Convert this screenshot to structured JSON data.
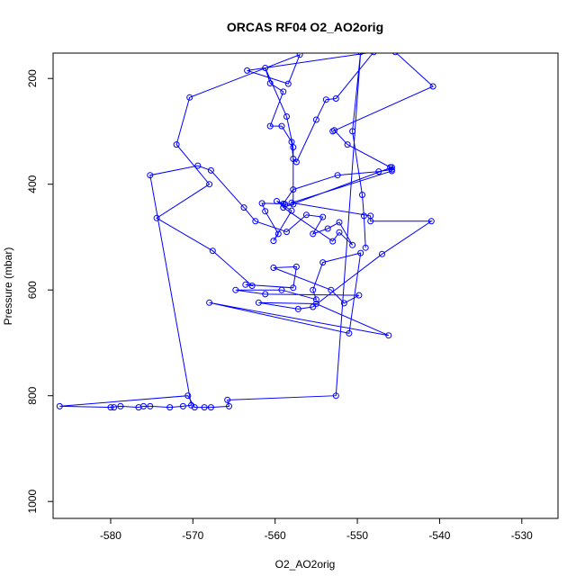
{
  "chart_data": {
    "type": "line",
    "title": "ORCAS RF04 O2_AO2orig",
    "xlabel": "O2_AO2orig",
    "ylabel": "Pressure (mbar)",
    "xlim": [
      -587.0,
      -525.6
    ],
    "ylim": [
      1032,
      152
    ],
    "y_reversed": true,
    "grid": false,
    "xticks": [
      -580,
      -570,
      -560,
      -550,
      -540,
      -530
    ],
    "xtick_labels": [
      "-580",
      "-570",
      "-560",
      "-550",
      "-540",
      "-530"
    ],
    "yticks": [
      200,
      400,
      600,
      800,
      1000
    ],
    "ytick_labels": [
      "200",
      "400",
      "600",
      "800",
      "1000"
    ],
    "color": "#0000ff",
    "series": [
      {
        "values": [
          [
            -545.4,
            150
          ],
          [
            -540.8,
            215
          ],
          [
            -553.0,
            300
          ],
          [
            -552.8,
            298
          ],
          [
            -551.2,
            325
          ],
          [
            -546.0,
            368
          ],
          [
            -545.8,
            375
          ],
          [
            -558.0,
            435
          ],
          [
            -548.4,
            460
          ],
          [
            -548.4,
            470
          ],
          [
            -541.0,
            470
          ],
          [
            -547.0,
            532
          ],
          [
            -555.4,
            632
          ],
          [
            -557.2,
            636
          ],
          [
            -562.0,
            624
          ],
          [
            -555.0,
            626
          ],
          [
            -546.2,
            686
          ],
          [
            -568.0,
            624
          ],
          [
            -551.0,
            682
          ],
          [
            -549.6,
            530
          ],
          [
            -554.2,
            548
          ],
          [
            -555.4,
            600
          ],
          [
            -555.0,
            618
          ],
          [
            -559.2,
            600
          ],
          [
            -564.8,
            600
          ],
          [
            -561.2,
            608
          ],
          [
            -549.8,
            610
          ],
          [
            -551.6,
            625
          ],
          [
            -553.2,
            600
          ],
          [
            -560.2,
            558
          ],
          [
            -557.4,
            556
          ],
          [
            -557.8,
            596
          ],
          [
            -563.6,
            590
          ],
          [
            -562.8,
            592
          ],
          [
            -567.6,
            526
          ],
          [
            -574.4,
            464
          ],
          [
            -568.0,
            400
          ],
          [
            -572.0,
            325
          ],
          [
            -570.4,
            236
          ],
          [
            -557.0,
            155
          ],
          [
            -558.4,
            210
          ],
          [
            -563.4,
            185
          ],
          [
            -548.0,
            150
          ],
          [
            -552.6,
            238
          ],
          [
            -553.8,
            240
          ],
          [
            -555.0,
            278
          ],
          [
            -557.4,
            358
          ],
          [
            -557.8,
            352
          ],
          [
            -558.0,
            320
          ],
          [
            -559.2,
            290
          ],
          [
            -560.6,
            290
          ],
          [
            -559.0,
            225
          ],
          [
            -560.6,
            209
          ],
          [
            -561.2,
            180
          ],
          [
            -558.6,
            272
          ],
          [
            -557.8,
            330
          ],
          [
            -557.8,
            438
          ],
          [
            -558.8,
            438
          ],
          [
            -559.8,
            432
          ],
          [
            -558.0,
            450
          ],
          [
            -560.2,
            507
          ],
          [
            -559.6,
            494
          ],
          [
            -561.2,
            451
          ],
          [
            -561.6,
            436
          ],
          [
            -559.0,
            437
          ],
          [
            -557.8,
            410
          ],
          [
            -552.4,
            383
          ],
          [
            -547.4,
            376
          ],
          [
            -545.8,
            372
          ],
          [
            -545.8,
            368
          ],
          [
            -559.0,
            444
          ],
          [
            -553.0,
            508
          ],
          [
            -552.2,
            491
          ],
          [
            -550.6,
            515
          ],
          [
            -552.2,
            472
          ],
          [
            -553.6,
            484
          ],
          [
            -555.4,
            494
          ],
          [
            -554.2,
            462
          ],
          [
            -556.2,
            458
          ],
          [
            -558.6,
            490
          ],
          [
            -562.4,
            470
          ],
          [
            -563.8,
            444
          ],
          [
            -567.8,
            374
          ],
          [
            -569.4,
            365
          ],
          [
            -575.2,
            383
          ],
          [
            -570.2,
            818
          ],
          [
            -571.2,
            820
          ],
          [
            -572.8,
            822
          ],
          [
            -575.2,
            820
          ],
          [
            -576.0,
            820
          ],
          [
            -576.6,
            822
          ],
          [
            -578.8,
            820
          ],
          [
            -580.0,
            822
          ],
          [
            -579.6,
            822
          ],
          [
            -586.2,
            820
          ],
          [
            -570.6,
            800
          ],
          [
            -569.8,
            822
          ],
          [
            -568.6,
            822
          ],
          [
            -567.8,
            822
          ],
          [
            -565.6,
            820
          ],
          [
            -565.8,
            808
          ],
          [
            -552.6,
            800
          ],
          [
            -549.6,
            150
          ],
          [
            -550.6,
            300
          ],
          [
            -549.4,
            420
          ],
          [
            -549.2,
            460
          ],
          [
            -549.0,
            520
          ]
        ]
      }
    ]
  }
}
